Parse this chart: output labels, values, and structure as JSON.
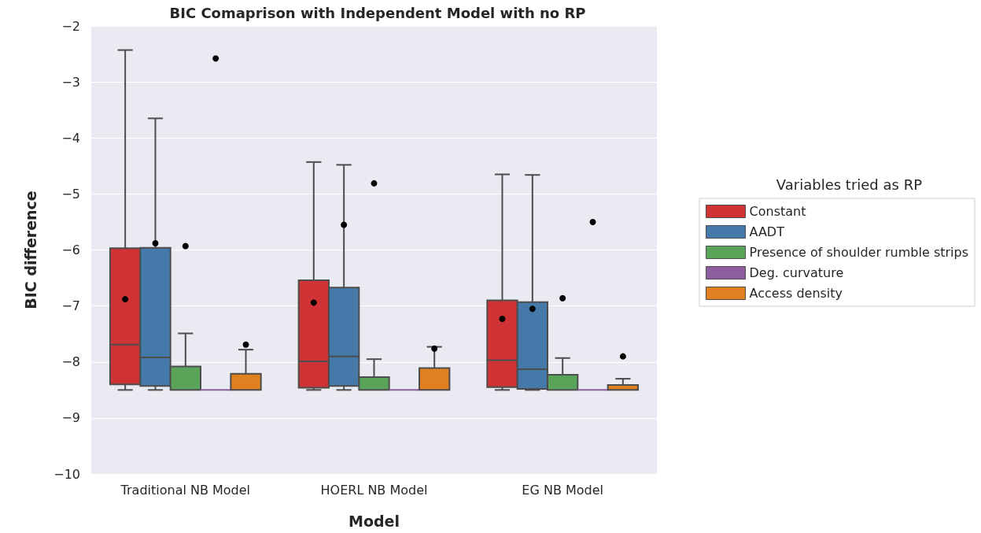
{
  "chart_data": {
    "type": "box",
    "title": "BIC Comaprison with Independent Model with no RP",
    "xlabel": "Model",
    "ylabel": "BIC difference",
    "legend_title": "Variables tried as RP",
    "legend": "right",
    "grid": "y",
    "categories": [
      "Traditional NB Model",
      "HOERL NB Model",
      "EG NB Model"
    ],
    "ylim": [
      -10,
      -2
    ],
    "yticks": [
      -10,
      -9,
      -8,
      -7,
      -6,
      -5,
      -4,
      -3,
      -2
    ],
    "series": [
      {
        "name": "Constant",
        "color": "#cf3336",
        "boxes": [
          {
            "low": -8.5,
            "q1": -8.4,
            "median": -7.69,
            "q3": -5.97,
            "high": -2.43,
            "mean": -6.88
          },
          {
            "low": -8.5,
            "q1": -8.46,
            "median": -7.99,
            "q3": -6.54,
            "high": -4.43,
            "mean": -6.94
          },
          {
            "low": -8.5,
            "q1": -8.45,
            "median": -7.97,
            "q3": -6.9,
            "high": -4.65,
            "mean": -7.23
          }
        ]
      },
      {
        "name": "AADT",
        "color": "#4479a9",
        "boxes": [
          {
            "low": -8.5,
            "q1": -8.43,
            "median": -7.92,
            "q3": -5.96,
            "high": -3.65,
            "mean": -5.88
          },
          {
            "low": -8.5,
            "q1": -8.43,
            "median": -7.9,
            "q3": -6.67,
            "high": -4.48,
            "mean": -5.55
          },
          {
            "low": -8.5,
            "q1": -8.48,
            "median": -8.13,
            "q3": -6.93,
            "high": -4.66,
            "mean": -7.05
          }
        ]
      },
      {
        "name": "Presence of shoulder rumble strips",
        "color": "#5aa45a",
        "boxes": [
          {
            "low": -8.5,
            "q1": -8.5,
            "median": -8.5,
            "q3": -8.08,
            "high": -7.49,
            "mean": -5.93
          },
          {
            "low": -8.5,
            "q1": -8.5,
            "median": -8.5,
            "q3": -8.27,
            "high": -7.95,
            "mean": -4.81
          },
          {
            "low": -8.5,
            "q1": -8.5,
            "median": -8.5,
            "q3": -8.23,
            "high": -7.93,
            "mean": -6.86
          }
        ]
      },
      {
        "name": "Deg. curvature",
        "color": "#8d5d9e",
        "boxes": [
          {
            "low": -8.5,
            "q1": -8.5,
            "median": -8.5,
            "q3": -8.5,
            "high": -8.5,
            "mean": -2.58
          },
          {
            "low": -8.5,
            "q1": -8.5,
            "median": -8.5,
            "q3": -8.5,
            "high": -8.5
          },
          {
            "low": -8.5,
            "q1": -8.5,
            "median": -8.5,
            "q3": -8.5,
            "high": -8.5,
            "mean": -5.5
          }
        ]
      },
      {
        "name": "Access density",
        "color": "#e08020",
        "boxes": [
          {
            "low": -8.5,
            "q1": -8.5,
            "median": -8.5,
            "q3": -8.21,
            "high": -7.78,
            "mean": -7.69
          },
          {
            "low": -8.5,
            "q1": -8.5,
            "median": -8.5,
            "q3": -8.11,
            "high": -7.73,
            "mean": -7.76
          },
          {
            "low": -8.5,
            "q1": -8.5,
            "median": -8.5,
            "q3": -8.41,
            "high": -8.3,
            "mean": -7.9
          }
        ]
      }
    ]
  }
}
